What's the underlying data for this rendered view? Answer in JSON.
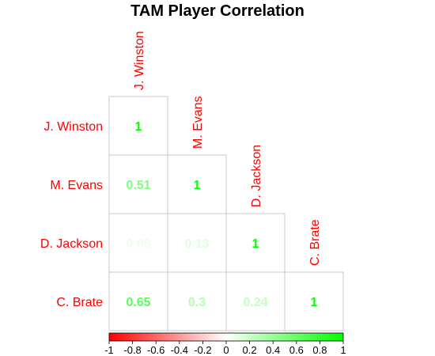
{
  "chart_data": {
    "type": "heatmap",
    "title": "TAM Player Correlation",
    "layout": "lower-triangle",
    "variables": [
      "J. Winston",
      "M. Evans",
      "D. Jackson",
      "C. Brate"
    ],
    "matrix": [
      [
        1,
        null,
        null,
        null
      ],
      [
        0.51,
        1,
        null,
        null
      ],
      [
        0.08,
        0.13,
        1,
        null
      ],
      [
        0.65,
        0.3,
        0.24,
        1
      ]
    ],
    "value_labels": [
      [
        "1",
        null,
        null,
        null
      ],
      [
        "0.51",
        "1",
        null,
        null
      ],
      [
        "0.08",
        "0.13",
        "1",
        null
      ],
      [
        "0.65",
        "0.3",
        "0.24",
        "1"
      ]
    ],
    "colorbar": {
      "range": [
        -1,
        1
      ],
      "ticks": [
        "-1",
        "-0.8",
        "-0.6",
        "-0.4",
        "-0.2",
        "0",
        "0.2",
        "0.4",
        "0.6",
        "0.8",
        "1"
      ],
      "colors": {
        "negative": "#ff0000",
        "zero": "#ffffff",
        "positive": "#00ff00"
      }
    },
    "label_color": "#ff0000",
    "grid": true
  }
}
